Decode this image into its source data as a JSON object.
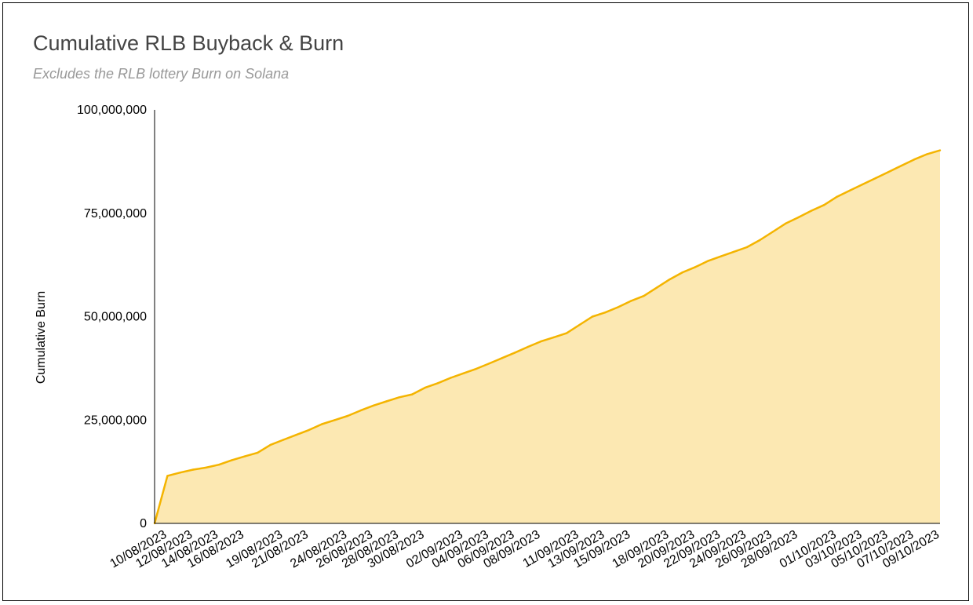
{
  "chart_data": {
    "type": "area",
    "title": "Cumulative RLB Buyback & Burn",
    "subtitle": "Excludes the RLB lottery Burn on Solana",
    "ylabel": "Cumulative Burn",
    "xlabel": "",
    "ylim": [
      0,
      100000000
    ],
    "yticks": [
      "0",
      "25,000,000",
      "50,000,000",
      "75,000,000",
      "100,000,000"
    ],
    "ytick_values": [
      0,
      25000000,
      50000000,
      75000000,
      100000000
    ],
    "grid": false,
    "legend": "none",
    "colors": {
      "line": "#f4b400",
      "fill": "#fce8b2",
      "axis": "#000000"
    },
    "x_start": "09/08/2023",
    "x_end": "09/10/2023",
    "xtick_labels": [
      "10/08/2023",
      "12/08/2023",
      "14/08/2023",
      "16/08/2023",
      "19/08/2023",
      "21/08/2023",
      "24/08/2023",
      "26/08/2023",
      "28/08/2023",
      "30/08/2023",
      "02/09/2023",
      "04/09/2023",
      "06/09/2023",
      "08/09/2023",
      "11/09/2023",
      "13/09/2023",
      "15/09/2023",
      "18/09/2023",
      "20/09/2023",
      "22/09/2023",
      "24/09/2023",
      "26/09/2023",
      "28/09/2023",
      "01/10/2023",
      "03/10/2023",
      "05/10/2023",
      "07/10/2023",
      "09/10/2023"
    ],
    "series": [
      {
        "x": [
          "09/08/2023",
          "10/08/2023",
          "11/08/2023",
          "12/08/2023",
          "13/08/2023",
          "14/08/2023",
          "15/08/2023",
          "16/08/2023",
          "17/08/2023",
          "18/08/2023",
          "19/08/2023",
          "20/08/2023",
          "21/08/2023",
          "22/08/2023",
          "23/08/2023",
          "24/08/2023",
          "25/08/2023",
          "26/08/2023",
          "27/08/2023",
          "28/08/2023",
          "29/08/2023",
          "30/08/2023",
          "31/08/2023",
          "01/09/2023",
          "02/09/2023",
          "03/09/2023",
          "04/09/2023",
          "05/09/2023",
          "06/09/2023",
          "07/09/2023",
          "08/09/2023",
          "09/09/2023",
          "10/09/2023",
          "11/09/2023",
          "12/09/2023",
          "13/09/2023",
          "14/09/2023",
          "15/09/2023",
          "16/09/2023",
          "17/09/2023",
          "18/09/2023",
          "19/09/2023",
          "20/09/2023",
          "21/09/2023",
          "22/09/2023",
          "23/09/2023",
          "24/09/2023",
          "25/09/2023",
          "26/09/2023",
          "27/09/2023",
          "28/09/2023",
          "29/09/2023",
          "30/09/2023",
          "01/10/2023",
          "02/10/2023",
          "03/10/2023",
          "04/10/2023",
          "05/10/2023",
          "06/10/2023",
          "07/10/2023",
          "08/10/2023",
          "09/10/2023"
        ],
        "values": [
          0,
          11500000,
          12300000,
          13000000,
          13500000,
          14200000,
          15300000,
          16200000,
          17100000,
          19000000,
          20200000,
          21400000,
          22600000,
          24000000,
          25000000,
          26000000,
          27300000,
          28500000,
          29500000,
          30500000,
          31200000,
          32800000,
          33900000,
          35200000,
          36300000,
          37400000,
          38700000,
          40000000,
          41300000,
          42700000,
          44000000,
          45000000,
          46000000,
          48000000,
          50000000,
          51000000,
          52300000,
          53800000,
          55000000,
          57000000,
          59000000,
          60700000,
          62000000,
          63500000,
          64600000,
          65700000,
          66800000,
          68500000,
          70500000,
          72500000,
          74000000,
          75600000,
          77000000,
          79000000,
          80500000,
          82000000,
          83500000,
          85000000,
          86500000,
          88000000,
          89300000,
          90200000
        ]
      }
    ]
  }
}
